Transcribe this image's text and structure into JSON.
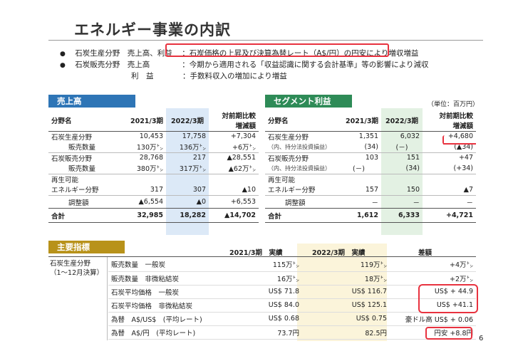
{
  "title": "エネルギー事業の内訳",
  "bullets": [
    {
      "label": "石炭生産分野　売上高、利益",
      "text": "石炭価格の上昇及び決算為替レート（A$/円）の円安により増収増益"
    },
    {
      "label": "石炭販売分野　売上高",
      "text": "今期から適用される「収益認識に関する会計基準」等の影響により減収"
    },
    {
      "label": "利　益",
      "text": "手数料収入の増加により増益"
    }
  ],
  "sales": {
    "section_label": "売上高",
    "headers": [
      "分野名",
      "2021/3期",
      "2022/3期",
      "対前期比較",
      "増減額"
    ],
    "rows": [
      [
        "石炭生産分野",
        "10,453",
        "17,758",
        "+7,304"
      ],
      [
        "販売数量",
        "130万㌧",
        "136万㌧",
        "+6万㌧"
      ],
      [
        "石炭販売分野",
        "28,768",
        "217",
        "▲28,551"
      ],
      [
        "販売数量",
        "380万㌧",
        "317万㌧",
        "▲62万㌧"
      ],
      [
        "再生可能",
        "",
        "",
        ""
      ],
      [
        "エネルギー分野",
        "317",
        "307",
        "▲10"
      ],
      [
        "調整額",
        "▲6,554",
        "▲0",
        "+6,553"
      ],
      [
        "合計",
        "32,985",
        "18,282",
        "▲14,702"
      ]
    ]
  },
  "segment": {
    "section_label": "セグメント利益",
    "unit": "（単位：百万円）",
    "headers": [
      "分野名",
      "2021/3期",
      "2022/3期",
      "対前期比較",
      "増減額"
    ],
    "rows": [
      [
        "石炭生産分野",
        "1,351",
        "6,032",
        "+4,680"
      ],
      [
        "（内、持分法投資損益）",
        "(34)",
        "(－)",
        "(▲34)"
      ],
      [
        "石炭販売分野",
        "103",
        "151",
        "+47"
      ],
      [
        "（内、持分法投資損益）",
        "(－)",
        "(34)",
        "(+34)"
      ],
      [
        "再生可能",
        "",
        "",
        ""
      ],
      [
        "エネルギー分野",
        "157",
        "150",
        "▲7"
      ],
      [
        "調整額",
        "－",
        "－",
        "－"
      ],
      [
        "合計",
        "1,612",
        "6,333",
        "+4,721"
      ]
    ]
  },
  "kpi": {
    "section_label": "主要指標",
    "headers": [
      "2021/3期　実績",
      "2022/3期　実績",
      "差額"
    ],
    "group_label": [
      "石炭生産分野",
      "（1～12月決算）"
    ],
    "rows": [
      [
        "販売数量　一般炭",
        "115万㌧",
        "119万㌧",
        "+4万㌧"
      ],
      [
        "販売数量　非微粘結炭",
        "16万㌧",
        "18万㌧",
        "+2万㌧"
      ],
      [
        "石炭平均価格　一般炭",
        "US$ 71.8",
        "US$ 116.7",
        "US$ + 44.9"
      ],
      [
        "石炭平均価格　非微粘結炭",
        "US$ 84.0",
        "US$ 125.1",
        "US$ +41.1"
      ],
      [
        "為替　A$/US$　(平均レート)",
        "US$ 0.68",
        "US$ 0.75",
        "豪ドル高 US$ + 0.06"
      ],
      [
        "為替　A$/円　(平均レート)",
        "73.7円",
        "82.5円",
        "円安 +8.8円"
      ]
    ]
  },
  "page_number": "6",
  "annotation_color": "#e8323f"
}
